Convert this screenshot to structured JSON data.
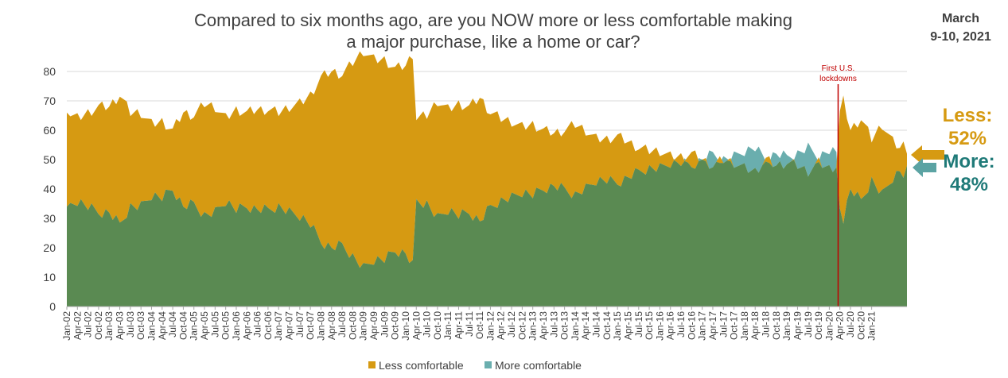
{
  "title_line1": "Compared to six months ago, are you NOW more or less comfortable making",
  "title_line2": "a major purchase, like a home or car?",
  "date_line1": "March",
  "date_line2": "9-10, 2021",
  "callouts": {
    "less_label": "Less:",
    "less_value": "52%",
    "more_label": "More:",
    "more_value": "48%"
  },
  "colors": {
    "less": "#d69a12",
    "more": "#6aaeae",
    "base": "#5a8a52",
    "lockdown_line": "#c00000",
    "gridline": "#d9d9d9"
  },
  "chart_data": {
    "type": "area",
    "title": "Compared to six months ago, are you NOW more or less comfortable making a major purchase, like a home or car?",
    "xlabel": "",
    "ylabel": "",
    "ylim": [
      0,
      80
    ],
    "yticks": [
      0,
      10,
      20,
      30,
      40,
      50,
      60,
      70,
      80
    ],
    "grid": true,
    "legend_position": "bottom",
    "legend": [
      "Less comfortable",
      "More comfortable"
    ],
    "x_start": "Jan-02",
    "x_end": "Mar-21",
    "tick_labels": [
      "Jan-02",
      "Apr-02",
      "Jul-02",
      "Oct-02",
      "Jan-03",
      "Apr-03",
      "Jul-03",
      "Oct-03",
      "Jan-04",
      "Apr-04",
      "Jul-04",
      "Oct-04",
      "Jan-05",
      "Apr-05",
      "Jul-05",
      "Oct-05",
      "Jan-06",
      "Apr-06",
      "Jul-06",
      "Oct-06",
      "Jan-07",
      "Apr-07",
      "Jul-07",
      "Oct-07",
      "Jan-08",
      "Apr-08",
      "Jul-08",
      "Oct-08",
      "Jan-09",
      "Apr-09",
      "Jul-09",
      "Oct-09",
      "Jan-10",
      "Apr-10",
      "Jul-10",
      "Oct-10",
      "Jan-11",
      "Apr-11",
      "Jul-11",
      "Oct-11",
      "Jan-12",
      "Apr-12",
      "Jul-12",
      "Oct-12",
      "Jan-13",
      "Apr-13",
      "Jul-13",
      "Oct-13",
      "Jan-14",
      "Apr-14",
      "Jul-14",
      "Oct-14",
      "Jan-15",
      "Apr-15",
      "Jul-15",
      "Oct-15",
      "Jan-16",
      "Apr-16",
      "Jul-16",
      "Oct-16",
      "Jan-17",
      "Apr-17",
      "Jul-17",
      "Oct-17",
      "Jan-18",
      "Apr-18",
      "Jul-18",
      "Oct-18",
      "Jan-19",
      "Apr-19",
      "Jul-19",
      "Oct-19",
      "Jan-20",
      "Apr-20",
      "Jul-20",
      "Oct-20",
      "Jan-21"
    ],
    "annotation": {
      "label_line1": "First U.S.",
      "label_line2": "lockdowns",
      "x": "Mar-20"
    },
    "anchors": [
      {
        "t": 0,
        "less": 66,
        "more": 34
      },
      {
        "t": 3,
        "less": 64,
        "more": 36
      },
      {
        "t": 6,
        "less": 66,
        "more": 34
      },
      {
        "t": 9,
        "less": 68,
        "more": 32
      },
      {
        "t": 12,
        "less": 68,
        "more": 32
      },
      {
        "t": 15,
        "less": 72,
        "more": 28
      },
      {
        "t": 18,
        "less": 66,
        "more": 34
      },
      {
        "t": 21,
        "less": 66,
        "more": 34
      },
      {
        "t": 24,
        "less": 62,
        "more": 38
      },
      {
        "t": 27,
        "less": 63,
        "more": 37
      },
      {
        "t": 30,
        "less": 60,
        "more": 40
      },
      {
        "t": 33,
        "less": 66,
        "more": 34
      },
      {
        "t": 36,
        "less": 65,
        "more": 35
      },
      {
        "t": 39,
        "less": 69,
        "more": 31
      },
      {
        "t": 42,
        "less": 68,
        "more": 32
      },
      {
        "t": 45,
        "less": 64,
        "more": 36
      },
      {
        "t": 48,
        "less": 67,
        "more": 33
      },
      {
        "t": 51,
        "less": 66,
        "more": 34
      },
      {
        "t": 54,
        "less": 67,
        "more": 33
      },
      {
        "t": 57,
        "less": 67,
        "more": 33
      },
      {
        "t": 60,
        "less": 66,
        "more": 34
      },
      {
        "t": 63,
        "less": 68,
        "more": 32
      },
      {
        "t": 66,
        "less": 69,
        "more": 31
      },
      {
        "t": 69,
        "less": 72,
        "more": 28
      },
      {
        "t": 72,
        "less": 78,
        "more": 22
      },
      {
        "t": 75,
        "less": 80,
        "more": 20
      },
      {
        "t": 78,
        "less": 79,
        "more": 21
      },
      {
        "t": 81,
        "less": 83,
        "more": 17
      },
      {
        "t": 84,
        "less": 87,
        "more": 13
      },
      {
        "t": 87,
        "less": 84,
        "more": 16
      },
      {
        "t": 90,
        "less": 84,
        "more": 16
      },
      {
        "t": 93,
        "less": 81,
        "more": 19
      },
      {
        "t": 96,
        "less": 82,
        "more": 18
      },
      {
        "t": 98,
        "less": 86,
        "more": 14
      },
      {
        "t": 99,
        "less": 64,
        "more": 36
      },
      {
        "t": 102,
        "less": 65,
        "more": 35
      },
      {
        "t": 105,
        "less": 70,
        "more": 30
      },
      {
        "t": 108,
        "less": 67,
        "more": 33
      },
      {
        "t": 111,
        "less": 69,
        "more": 31
      },
      {
        "t": 114,
        "less": 68,
        "more": 32
      },
      {
        "t": 117,
        "less": 71,
        "more": 29
      },
      {
        "t": 120,
        "less": 66,
        "more": 34
      },
      {
        "t": 123,
        "less": 64,
        "more": 36
      },
      {
        "t": 126,
        "less": 63,
        "more": 37
      },
      {
        "t": 129,
        "less": 61,
        "more": 39
      },
      {
        "t": 132,
        "less": 62,
        "more": 38
      },
      {
        "t": 135,
        "less": 60,
        "more": 40
      },
      {
        "t": 138,
        "less": 59,
        "more": 41
      },
      {
        "t": 141,
        "less": 60,
        "more": 40
      },
      {
        "t": 144,
        "less": 62,
        "more": 38
      },
      {
        "t": 147,
        "less": 60,
        "more": 40
      },
      {
        "t": 150,
        "less": 57,
        "more": 43
      },
      {
        "t": 153,
        "less": 57,
        "more": 43
      },
      {
        "t": 156,
        "less": 58,
        "more": 42
      },
      {
        "t": 159,
        "less": 56,
        "more": 44
      },
      {
        "t": 162,
        "less": 54,
        "more": 46
      },
      {
        "t": 165,
        "less": 53,
        "more": 47
      },
      {
        "t": 168,
        "less": 53,
        "more": 47
      },
      {
        "t": 171,
        "less": 51,
        "more": 49
      },
      {
        "t": 174,
        "less": 51,
        "more": 49
      },
      {
        "t": 177,
        "less": 52,
        "more": 48
      },
      {
        "t": 180,
        "less": 50,
        "more": 50
      },
      {
        "t": 183,
        "less": 48,
        "more": 52
      },
      {
        "t": 186,
        "less": 50,
        "more": 50
      },
      {
        "t": 189,
        "less": 49,
        "more": 51
      },
      {
        "t": 192,
        "less": 47,
        "more": 53
      },
      {
        "t": 195,
        "less": 46,
        "more": 54
      },
      {
        "t": 198,
        "less": 50,
        "more": 50
      },
      {
        "t": 201,
        "less": 48,
        "more": 52
      },
      {
        "t": 204,
        "less": 49,
        "more": 51
      },
      {
        "t": 207,
        "less": 48,
        "more": 52
      },
      {
        "t": 210,
        "less": 46,
        "more": 54
      },
      {
        "t": 213,
        "less": 49,
        "more": 51
      },
      {
        "t": 216,
        "less": 47,
        "more": 53
      },
      {
        "t": 218,
        "less": 48,
        "more": 52
      },
      {
        "t": 219,
        "less": 66,
        "more": 34
      },
      {
        "t": 220,
        "less": 70,
        "more": 30
      },
      {
        "t": 222,
        "less": 60,
        "more": 40
      },
      {
        "t": 225,
        "less": 64,
        "more": 36
      },
      {
        "t": 228,
        "less": 57,
        "more": 43
      },
      {
        "t": 231,
        "less": 62,
        "more": 38
      },
      {
        "t": 234,
        "less": 56,
        "more": 44
      },
      {
        "t": 236,
        "less": 54,
        "more": 46
      },
      {
        "t": 237,
        "less": 55,
        "more": 45
      },
      {
        "t": 238,
        "less": 52,
        "more": 48
      }
    ],
    "final_values": {
      "less": 52,
      "more": 48
    }
  }
}
